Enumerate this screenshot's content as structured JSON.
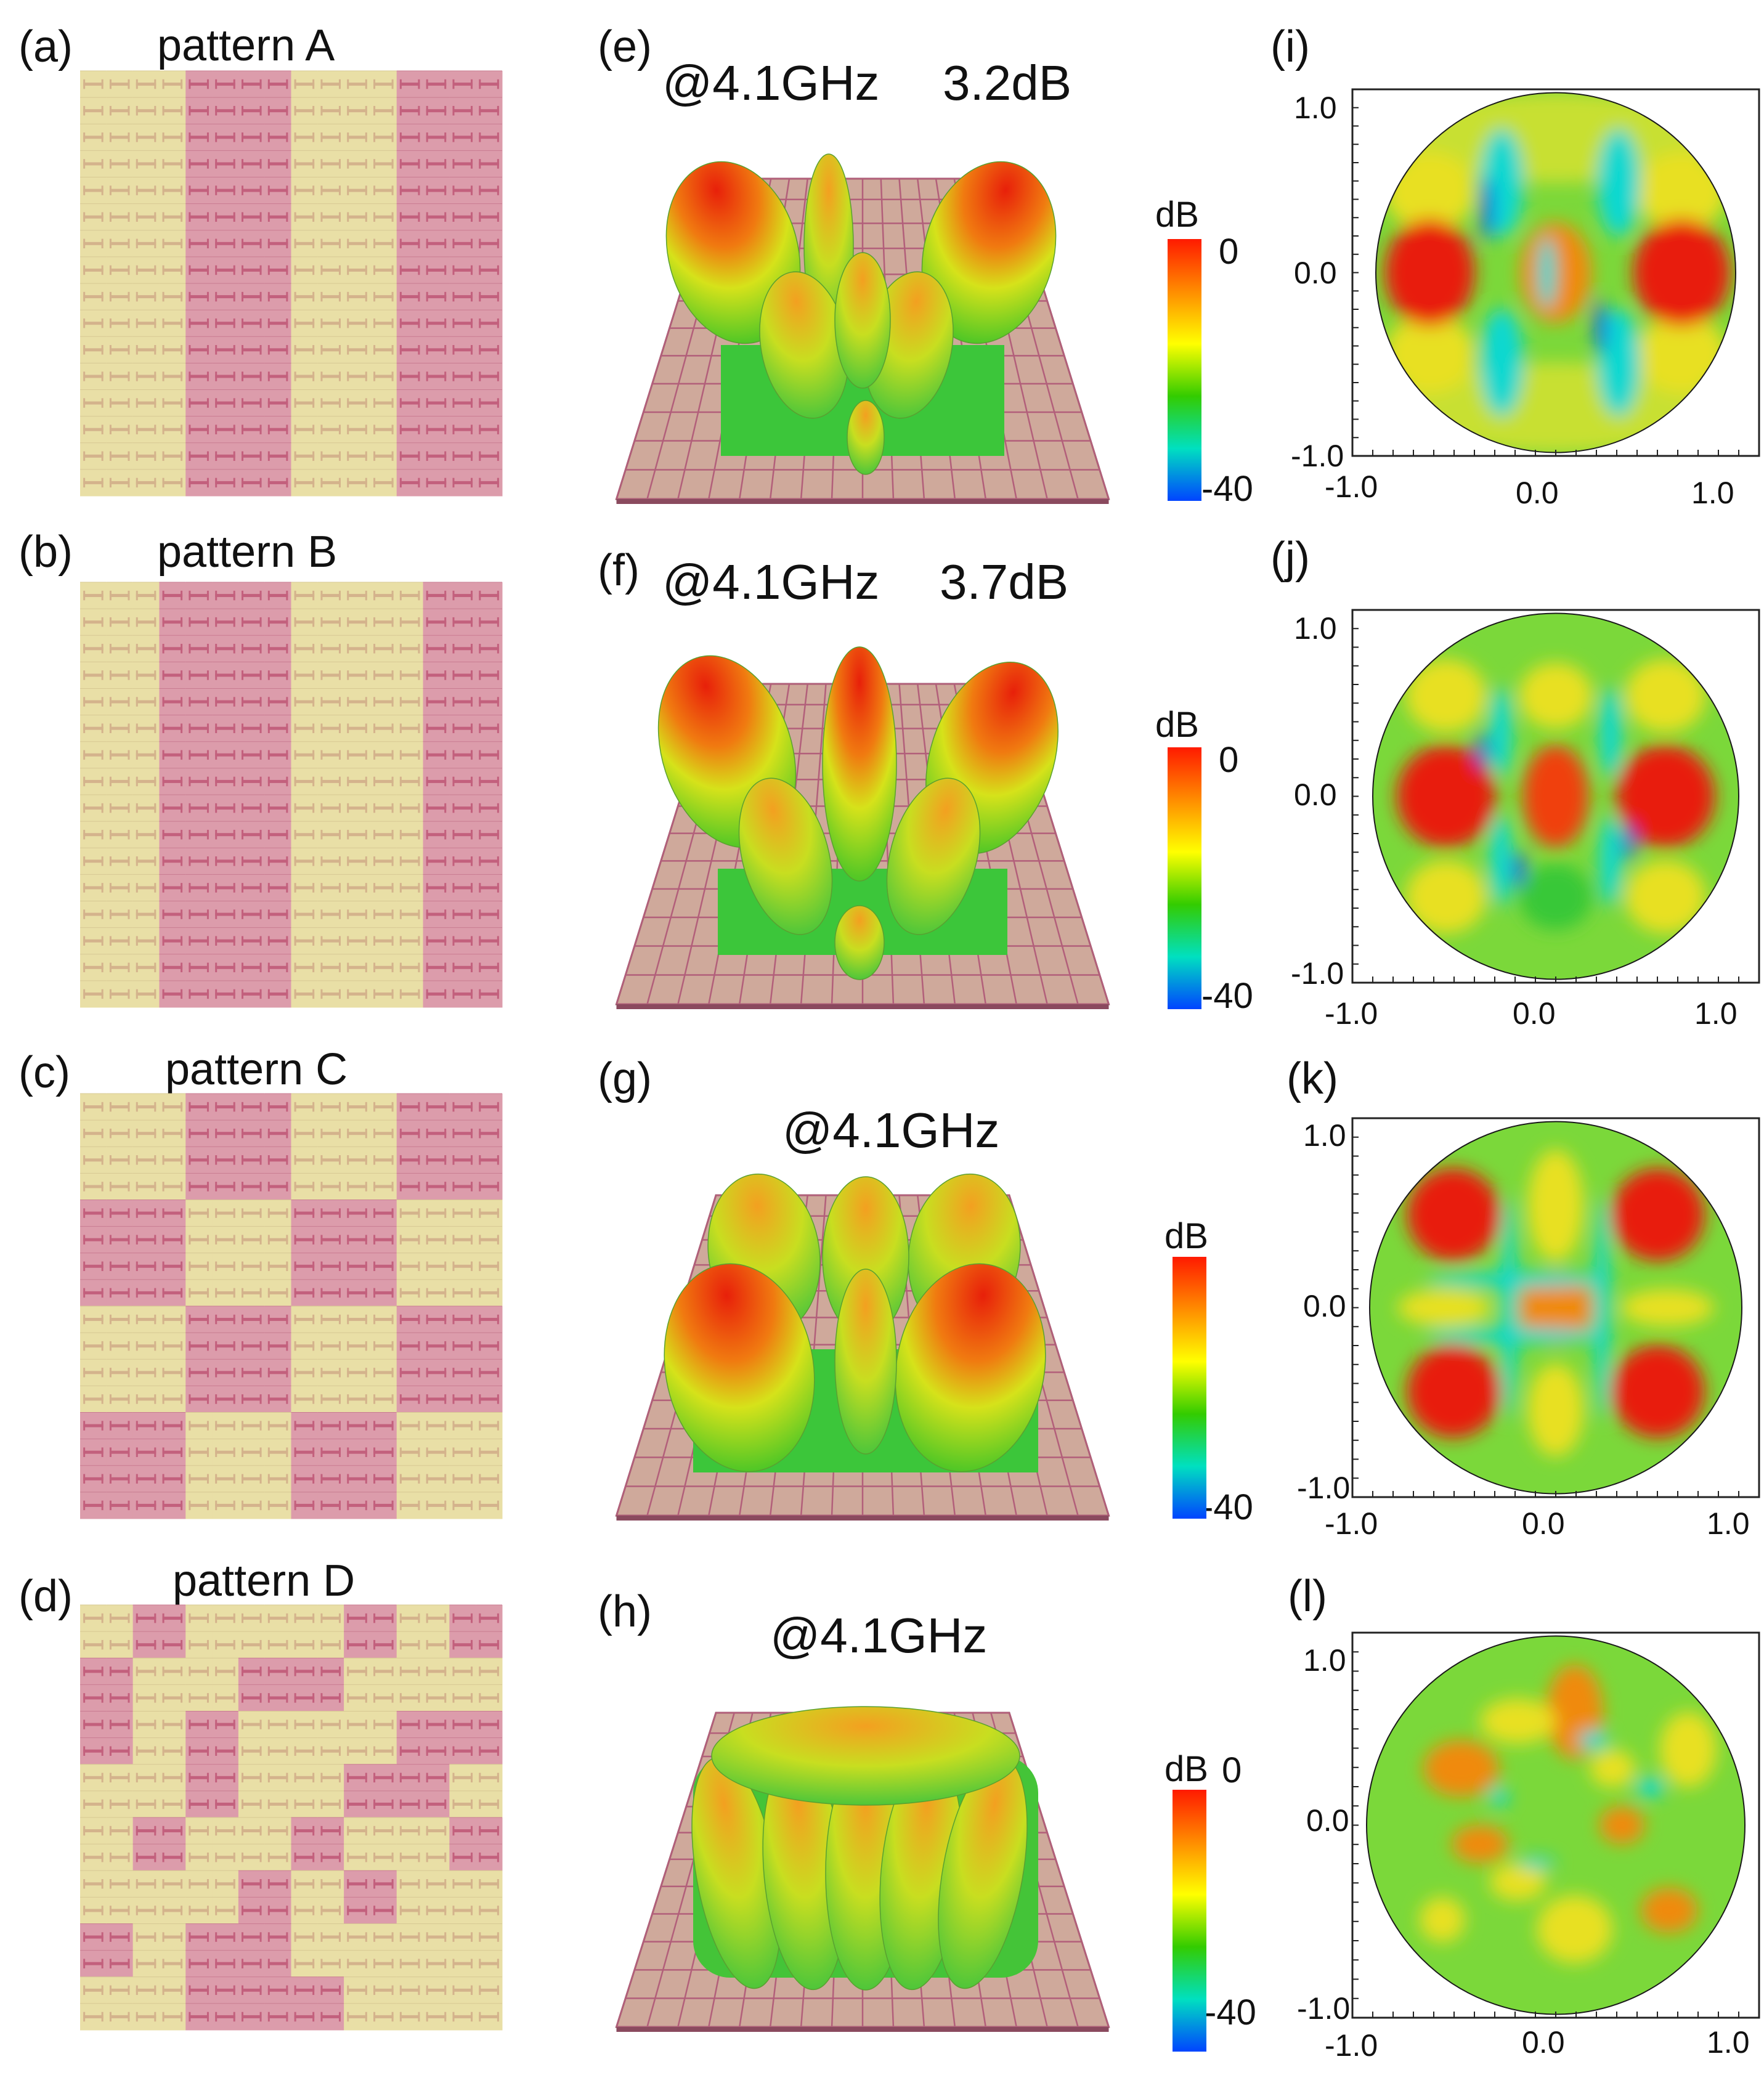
{
  "panels": [
    {
      "id": "a",
      "label": "(a)",
      "title": "pattern A"
    },
    {
      "id": "b",
      "label": "(b)",
      "title": "pattern B"
    },
    {
      "id": "c",
      "label": "(c)",
      "title": "pattern C"
    },
    {
      "id": "d",
      "label": "(d)",
      "title": "pattern D"
    },
    {
      "id": "e",
      "label": "(e)",
      "freq": "@4.1GHz",
      "gain": "3.2dB"
    },
    {
      "id": "f",
      "label": "(f)",
      "freq": "@4.1GHz",
      "gain": "3.7dB"
    },
    {
      "id": "g",
      "label": "(g)",
      "freq": "@4.1GHz"
    },
    {
      "id": "h",
      "label": "(h)",
      "freq": "@4.1GHz"
    },
    {
      "id": "i",
      "label": "(i)"
    },
    {
      "id": "j",
      "label": "(j)"
    },
    {
      "id": "k",
      "label": "(k)"
    },
    {
      "id": "l",
      "label": "(l)"
    }
  ],
  "colorbar": {
    "unit": "dB",
    "max": "0",
    "min": "-40",
    "gradient": [
      "#ff1a00",
      "#ff8c00",
      "#ffff00",
      "#33cc00",
      "#00e0c0",
      "#0044ff"
    ]
  },
  "axes": {
    "ticks_x": [
      "-1.0",
      "0.0",
      "1.0"
    ],
    "ticks_y": [
      "1.0",
      "0.0",
      "-1.0"
    ]
  },
  "colors": {
    "metal_pink": "#d96a8f",
    "metal_yellow": "#e8df9a",
    "substrate": "#c9a79a",
    "board_edge": "#a0606e"
  }
}
